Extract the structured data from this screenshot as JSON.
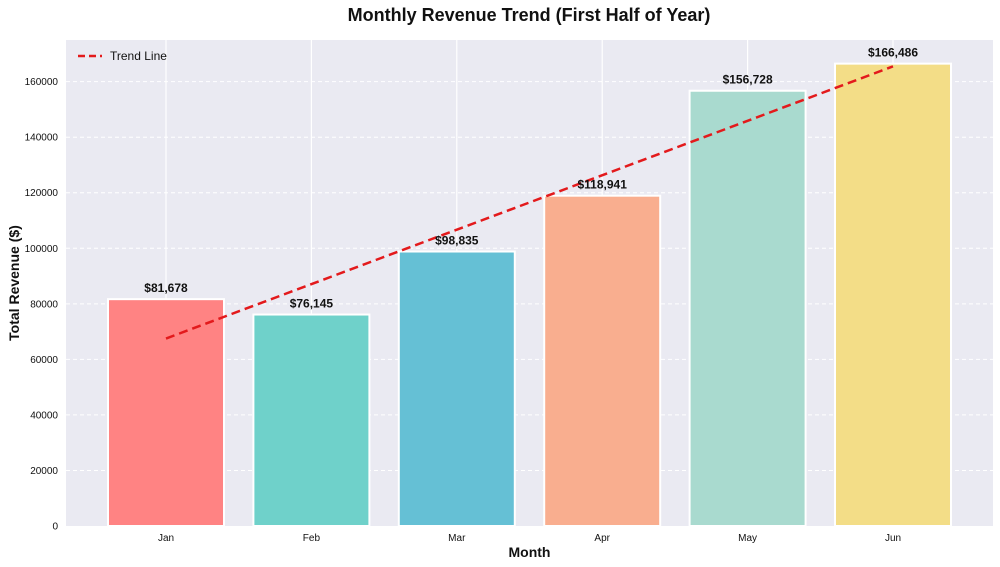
{
  "chart_data": {
    "type": "bar",
    "title": "Monthly Revenue Trend (First Half of Year)",
    "xlabel": "Month",
    "ylabel": "Total Revenue ($)",
    "categories": [
      "Jan",
      "Feb",
      "Mar",
      "Apr",
      "May",
      "Jun"
    ],
    "values": [
      81678,
      76145,
      98835,
      118941,
      156728,
      166486
    ],
    "value_labels": [
      "$81,678",
      "$76,145",
      "$98,835",
      "$118,941",
      "$156,728",
      "$166,486"
    ],
    "bar_colors": [
      "#FF8383",
      "#6FD1CA",
      "#65C0D5",
      "#F9AE8F",
      "#A9DACF",
      "#F3DD87"
    ],
    "ylim": [
      0,
      175000
    ],
    "yticks": [
      0,
      20000,
      40000,
      60000,
      80000,
      100000,
      120000,
      140000,
      160000
    ],
    "ytick_labels": [
      "0",
      "20000",
      "40000",
      "60000",
      "80000",
      "100000",
      "120000",
      "140000",
      "160000"
    ],
    "trend_line": {
      "name": "Trend Line",
      "start": 67500,
      "end": 165500,
      "color": "#E31A1C"
    },
    "legend_position": "top-left",
    "grid": true,
    "background_color": "#EAEAF2"
  }
}
